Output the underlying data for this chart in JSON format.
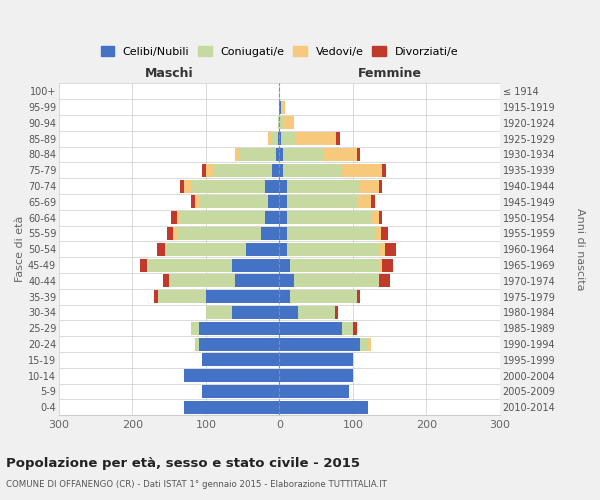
{
  "age_groups": [
    "0-4",
    "5-9",
    "10-14",
    "15-19",
    "20-24",
    "25-29",
    "30-34",
    "35-39",
    "40-44",
    "45-49",
    "50-54",
    "55-59",
    "60-64",
    "65-69",
    "70-74",
    "75-79",
    "80-84",
    "85-89",
    "90-94",
    "95-99",
    "100+"
  ],
  "birth_years": [
    "2010-2014",
    "2005-2009",
    "2000-2004",
    "1995-1999",
    "1990-1994",
    "1985-1989",
    "1980-1984",
    "1975-1979",
    "1970-1974",
    "1965-1969",
    "1960-1964",
    "1955-1959",
    "1950-1954",
    "1945-1949",
    "1940-1944",
    "1935-1939",
    "1930-1934",
    "1925-1929",
    "1920-1924",
    "1915-1919",
    "≤ 1914"
  ],
  "colors": {
    "celibe": "#4472C4",
    "coniugato": "#C5D9A0",
    "vedovo": "#F6C97C",
    "divorziato": "#C0392B"
  },
  "maschi": {
    "celibe": [
      130,
      105,
      130,
      105,
      110,
      110,
      65,
      100,
      60,
      65,
      45,
      25,
      20,
      15,
      20,
      10,
      5,
      2,
      0,
      0,
      0
    ],
    "coniugato": [
      0,
      0,
      0,
      0,
      5,
      10,
      35,
      65,
      90,
      115,
      110,
      115,
      115,
      95,
      100,
      80,
      50,
      8,
      2,
      0,
      0
    ],
    "vedovo": [
      0,
      0,
      0,
      0,
      0,
      0,
      0,
      0,
      0,
      0,
      0,
      5,
      5,
      5,
      10,
      10,
      5,
      5,
      0,
      0,
      0
    ],
    "divorziato": [
      0,
      0,
      0,
      0,
      0,
      0,
      0,
      5,
      8,
      10,
      12,
      8,
      8,
      5,
      5,
      5,
      0,
      0,
      0,
      0,
      0
    ]
  },
  "femmine": {
    "nubile": [
      120,
      95,
      100,
      100,
      110,
      85,
      25,
      15,
      20,
      15,
      10,
      10,
      10,
      10,
      10,
      5,
      5,
      2,
      0,
      2,
      0
    ],
    "coniugata": [
      0,
      0,
      0,
      0,
      10,
      15,
      50,
      90,
      115,
      120,
      125,
      120,
      115,
      95,
      100,
      80,
      55,
      20,
      5,
      0,
      0
    ],
    "vedova": [
      0,
      0,
      0,
      0,
      5,
      0,
      0,
      0,
      0,
      5,
      8,
      8,
      10,
      20,
      25,
      55,
      45,
      55,
      15,
      5,
      0
    ],
    "divorziata": [
      0,
      0,
      0,
      0,
      0,
      5,
      5,
      5,
      15,
      15,
      15,
      10,
      5,
      5,
      5,
      5,
      5,
      5,
      0,
      0,
      0
    ]
  },
  "xlim": 300,
  "title": "Popolazione per età, sesso e stato civile - 2015",
  "subtitle": "COMUNE DI OFFANENGO (CR) - Dati ISTAT 1° gennaio 2015 - Elaborazione TUTTITALIA.IT",
  "ylabel_left": "Fasce di età",
  "ylabel_right": "Anni di nascita",
  "label_maschi": "Maschi",
  "label_femmine": "Femmine",
  "legend_labels": [
    "Celibi/Nubili",
    "Coniugati/e",
    "Vedovi/e",
    "Divorziati/e"
  ],
  "bg_color": "#f0f0f0",
  "plot_bg_color": "#ffffff"
}
